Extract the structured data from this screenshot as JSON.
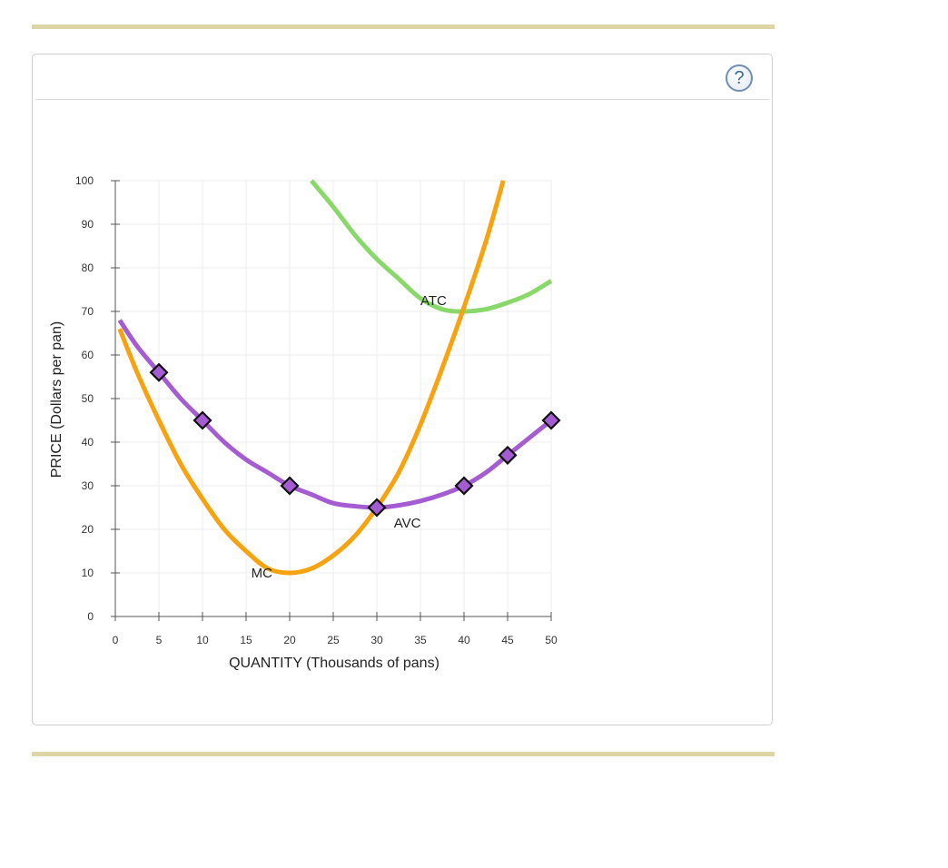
{
  "panel": {
    "help_icon": "question-mark-icon",
    "help_label": "?"
  },
  "chart_data": {
    "type": "line",
    "xlabel": "QUANTITY (Thousands of pans)",
    "ylabel": "PRICE (Dollars per pan)",
    "xlim": [
      0,
      50
    ],
    "ylim": [
      0,
      100
    ],
    "xticks": [
      0,
      5,
      10,
      15,
      20,
      25,
      30,
      35,
      40,
      45,
      50
    ],
    "yticks": [
      0,
      10,
      20,
      30,
      40,
      50,
      60,
      70,
      80,
      90,
      100
    ],
    "grid": true,
    "series": [
      {
        "name": "ATC",
        "color": "#88d86a",
        "x": [
          22.5,
          25,
          27.5,
          30,
          32.5,
          35,
          37.5,
          40,
          42.5,
          45,
          47.5,
          50
        ],
        "y": [
          100,
          94,
          87.5,
          82,
          77.5,
          73,
          70.5,
          70,
          70.5,
          72,
          74,
          77
        ]
      },
      {
        "name": "MC",
        "color": "#f7a20f",
        "x": [
          0.5,
          2.5,
          5,
          7.5,
          10,
          12.5,
          15,
          17.5,
          20,
          22.5,
          25,
          27.5,
          30,
          32.5,
          35,
          37.5,
          40,
          42.5,
          44.5
        ],
        "y": [
          66,
          56,
          45,
          35,
          27,
          20,
          15,
          11,
          10,
          11,
          14,
          18.5,
          25,
          33,
          44,
          57,
          71,
          86,
          100
        ]
      },
      {
        "name": "AVC",
        "color": "#a55bd1",
        "x": [
          0.5,
          2.5,
          5,
          7.5,
          10,
          12.5,
          15,
          17.5,
          20,
          22.5,
          25,
          27.5,
          30,
          32.5,
          35,
          37.5,
          40,
          42.5,
          45,
          47.5,
          50
        ],
        "y": [
          68,
          62,
          56,
          50,
          45,
          40,
          36,
          33,
          30,
          28,
          26,
          25.3,
          25,
          25.5,
          26.5,
          28,
          30,
          33,
          37,
          41,
          45
        ],
        "markers": {
          "x": [
            5,
            10,
            20,
            30,
            40,
            45,
            50
          ],
          "y": [
            56,
            45,
            30,
            25,
            30,
            37,
            45
          ]
        }
      }
    ],
    "annotations": [
      {
        "text": "ATC",
        "x": 36.5,
        "y": 72.5
      },
      {
        "text": "MC",
        "x": 16.8,
        "y": 10
      },
      {
        "text": "AVC",
        "x": 33.5,
        "y": 21.5
      }
    ]
  }
}
